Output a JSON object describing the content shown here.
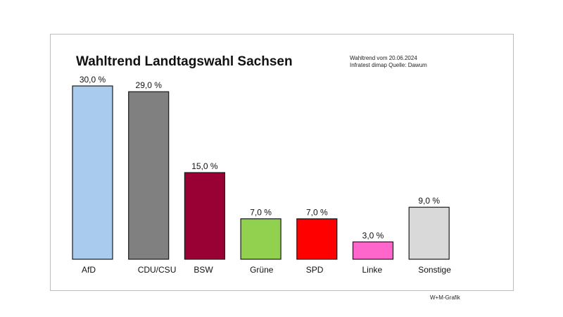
{
  "chart_data": {
    "type": "bar",
    "title": "Wahltrend Landtagswahl Sachsen",
    "subtitle_lines": [
      "Wahltrend vom 20.06.2024",
      "Infratest dimap Quelle: Dawum"
    ],
    "credit": "W+M-Grafik",
    "categories": [
      "AfD",
      "CDU/CSU",
      "BSW",
      "Grüne",
      "SPD",
      "Linke",
      "Sonstige"
    ],
    "values": [
      30.0,
      29.0,
      15.0,
      7.0,
      7.0,
      3.0,
      9.0
    ],
    "value_labels": [
      "30,0 %",
      "29,0 %",
      "15,0 %",
      "7,0 %",
      "7,0 %",
      "3,0 %",
      "9,0 %"
    ],
    "colors": [
      "#a9cbee",
      "#808080",
      "#990033",
      "#92d050",
      "#ff0000",
      "#ff66cc",
      "#d9d9d9"
    ],
    "ylim": [
      0,
      30
    ],
    "grid": false,
    "legend": "none"
  }
}
